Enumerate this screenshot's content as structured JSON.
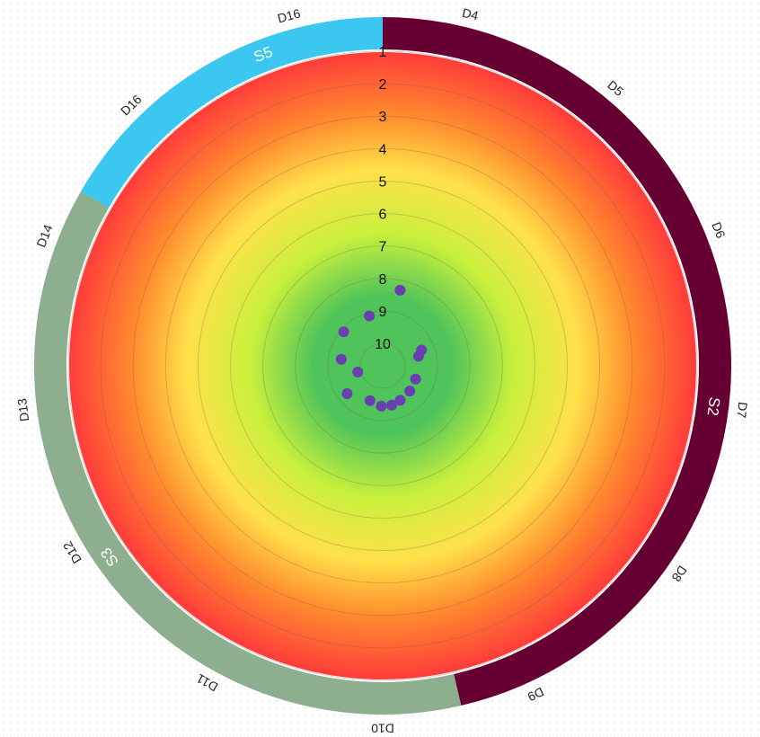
{
  "chart_data": {
    "type": "scatter",
    "coordinate_system": "polar",
    "title": "",
    "radial_scale": {
      "min": 1,
      "max": 10,
      "reversed": true,
      "tick_labels": [
        "1",
        "2",
        "3",
        "4",
        "5",
        "6",
        "7",
        "8",
        "9",
        "10"
      ]
    },
    "background_gradient": {
      "outer_color": "#ff3b3b",
      "mid_color": "#ffe24a",
      "inner_color": "#4fc45a"
    },
    "groups": [
      {
        "name": "S2",
        "color": "#660033",
        "from_deg": 0,
        "to_deg": 167
      },
      {
        "name": "S3",
        "color": "#8dae8f",
        "from_deg": 167,
        "to_deg": 300
      },
      {
        "name": "S5",
        "color": "#3cc7f0",
        "from_deg": 300,
        "to_deg": 360
      }
    ],
    "segment_labels": [
      {
        "text": "D4",
        "angle_deg": 14
      },
      {
        "text": "D5",
        "angle_deg": 40
      },
      {
        "text": "D6",
        "angle_deg": 68
      },
      {
        "text": "D7",
        "angle_deg": 97
      },
      {
        "text": "D8",
        "angle_deg": 125
      },
      {
        "text": "D9",
        "angle_deg": 155
      },
      {
        "text": "D10",
        "angle_deg": 180
      },
      {
        "text": "D11",
        "angle_deg": 209
      },
      {
        "text": "D12",
        "angle_deg": 239
      },
      {
        "text": "D13",
        "angle_deg": 263
      },
      {
        "text": "D14",
        "angle_deg": 291
      },
      {
        "text": "D16",
        "angle_deg": 316
      },
      {
        "text": "D16",
        "angle_deg": 345
      }
    ],
    "points_color": "#6a3fb0",
    "points": [
      {
        "angle_deg": 13,
        "value": 8.3
      },
      {
        "angle_deg": 68,
        "value": 9.4
      },
      {
        "angle_deg": 75,
        "value": 9.55
      },
      {
        "angle_deg": 112,
        "value": 9.6
      },
      {
        "angle_deg": 133,
        "value": 9.55
      },
      {
        "angle_deg": 153,
        "value": 9.5
      },
      {
        "angle_deg": 167,
        "value": 9.45
      },
      {
        "angle_deg": 182,
        "value": 9.45
      },
      {
        "angle_deg": 200,
        "value": 9.55
      },
      {
        "angle_deg": 232,
        "value": 9.3
      },
      {
        "angle_deg": 256,
        "value": 9.9
      },
      {
        "angle_deg": 279,
        "value": 9.4
      },
      {
        "angle_deg": 311,
        "value": 9.1
      },
      {
        "angle_deg": 345,
        "value": 9.1
      }
    ],
    "grid": true,
    "legend": "none"
  }
}
